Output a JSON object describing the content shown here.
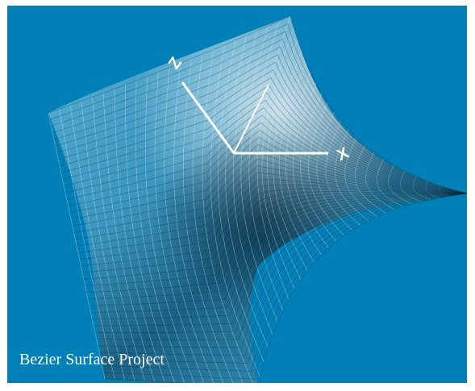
{
  "viewport": {
    "background_color": "#0080b6",
    "caption": "Bezier Surface Project"
  },
  "axes": {
    "x_label": "X",
    "z_label": "Z",
    "axis_color": "#ffffff"
  },
  "surface": {
    "type": "bezier-surface-wireframe",
    "mesh_color_light": "#d7eef8",
    "mesh_color_dark": "#0a2a3a"
  }
}
